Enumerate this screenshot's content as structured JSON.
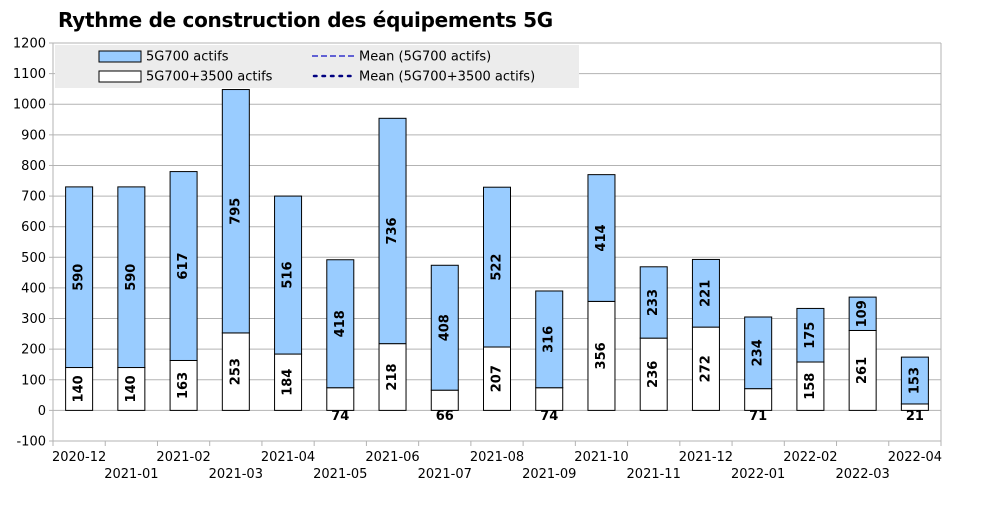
{
  "chart_data": {
    "type": "bar",
    "stacked": true,
    "title": "Rythme de construction des équipements 5G",
    "categories": [
      "2020-12",
      "2021-01",
      "2021-02",
      "2021-03",
      "2021-04",
      "2021-05",
      "2021-06",
      "2021-07",
      "2021-08",
      "2021-09",
      "2021-10",
      "2021-11",
      "2021-12",
      "2022-01",
      "2022-02",
      "2022-03",
      "2022-04"
    ],
    "series": [
      {
        "name": "5G700+3500 actifs",
        "color": "#ffffff",
        "values": [
          140,
          140,
          163,
          253,
          184,
          74,
          218,
          66,
          207,
          74,
          356,
          236,
          272,
          71,
          158,
          261,
          21
        ]
      },
      {
        "name": "5G700 actifs",
        "color": "#99ccff",
        "values": [
          590,
          590,
          617,
          795,
          516,
          418,
          736,
          408,
          522,
          316,
          414,
          233,
          221,
          234,
          175,
          109,
          153
        ]
      }
    ],
    "legend": {
      "position": "top-left",
      "entries": [
        {
          "label": "5G700 actifs",
          "kind": "box",
          "color": "#99ccff"
        },
        {
          "label": "Mean (5G700 actifs)",
          "kind": "dashed",
          "color": "#3333cc"
        },
        {
          "label": "5G700+3500 actifs",
          "kind": "box",
          "color": "#ffffff"
        },
        {
          "label": "Mean (5G700+3500 actifs)",
          "kind": "dotted",
          "color": "#000080"
        }
      ]
    },
    "ylim": [
      -100,
      1200
    ],
    "yticks": [
      -100,
      0,
      100,
      200,
      300,
      400,
      500,
      600,
      700,
      800,
      900,
      1000,
      1100,
      1200
    ],
    "grid": true
  }
}
